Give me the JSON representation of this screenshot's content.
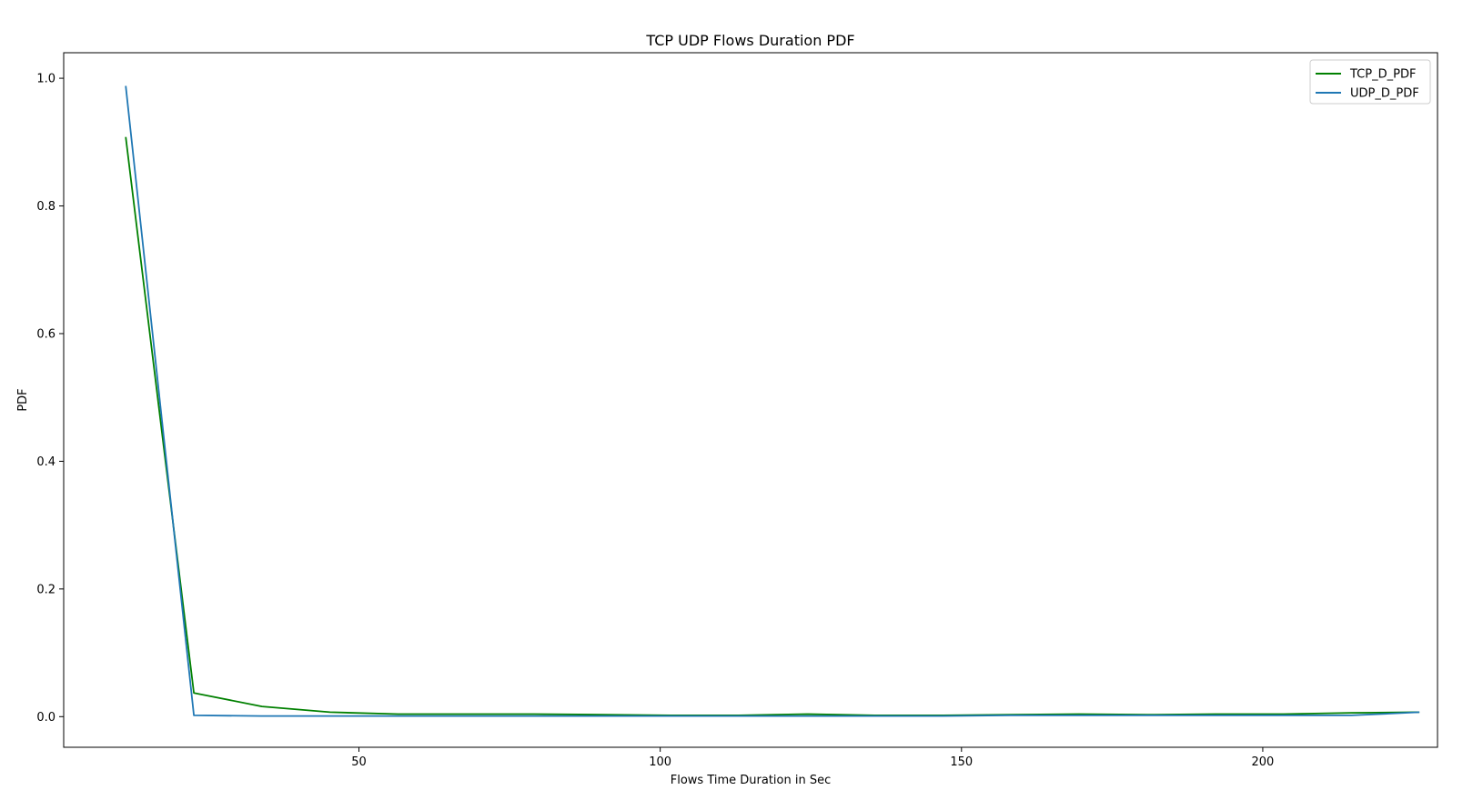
{
  "chart_data": {
    "type": "line",
    "title": "TCP UDP Flows Duration PDF",
    "xlabel": "Flows Time Duration in Sec",
    "ylabel": "PDF",
    "xlim": [
      1,
      229
    ],
    "ylim": [
      -0.048,
      1.04
    ],
    "xticks": [
      50,
      100,
      150,
      200
    ],
    "yticks": [
      0.0,
      0.2,
      0.4,
      0.6,
      0.8,
      1.0
    ],
    "xtick_labels": [
      "50",
      "100",
      "150",
      "200"
    ],
    "ytick_labels": [
      "0.0",
      "0.2",
      "0.4",
      "0.6",
      "0.8",
      "1.0"
    ],
    "grid": false,
    "legend_position": "top-right",
    "series": [
      {
        "name": "TCP_D_PDF",
        "color": "#008000",
        "x": [
          11.3,
          22.6,
          33.9,
          45.2,
          56.5,
          67.8,
          79.1,
          90.4,
          101.7,
          113.0,
          124.3,
          135.6,
          146.9,
          158.2,
          169.5,
          180.8,
          192.1,
          203.4,
          214.7,
          226.0
        ],
        "y": [
          0.908,
          0.037,
          0.016,
          0.007,
          0.004,
          0.004,
          0.004,
          0.003,
          0.002,
          0.002,
          0.004,
          0.002,
          0.002,
          0.003,
          0.004,
          0.003,
          0.004,
          0.004,
          0.006,
          0.007
        ]
      },
      {
        "name": "UDP_D_PDF",
        "color": "#1f77b4",
        "x": [
          11.3,
          22.6,
          33.9,
          45.2,
          56.5,
          67.8,
          79.1,
          90.4,
          101.7,
          113.0,
          124.3,
          135.6,
          146.9,
          158.2,
          169.5,
          180.8,
          192.1,
          203.4,
          214.7,
          226.0
        ],
        "y": [
          0.988,
          0.002,
          0.001,
          0.001,
          0.001,
          0.001,
          0.001,
          0.001,
          0.001,
          0.001,
          0.001,
          0.001,
          0.001,
          0.002,
          0.002,
          0.002,
          0.002,
          0.002,
          0.002,
          0.007
        ]
      }
    ]
  }
}
